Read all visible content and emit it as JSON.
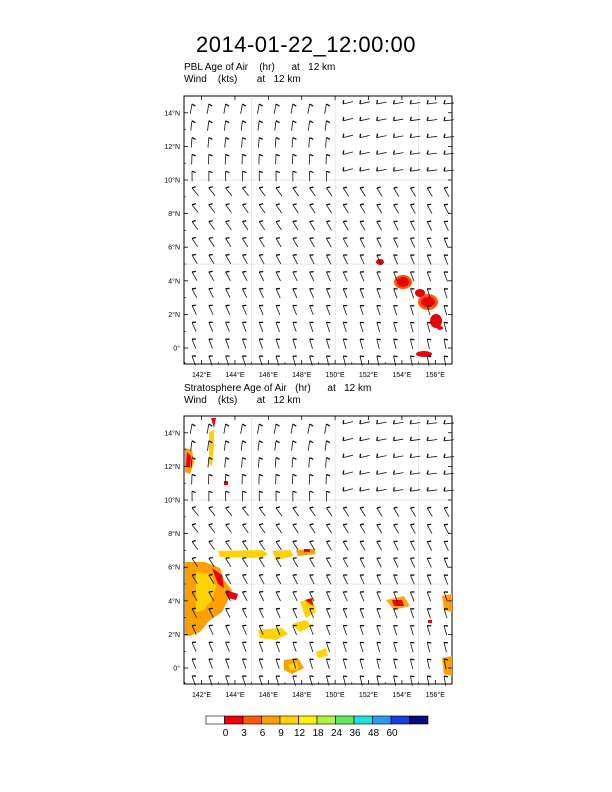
{
  "title": "2014-01-22_12:00:00",
  "panels": [
    {
      "title_line1": "PBL Age of Air    (hr)      at   12 km",
      "title_line2": "Wind    (kts)       at   12 km"
    },
    {
      "title_line1": "Stratosphere Age of Air   (hr)      at   12 km",
      "title_line2": "Wind    (kts)       at   12 km"
    }
  ],
  "lat_labels": [
    "14°N",
    "12°N",
    "10°N",
    "8°N",
    "6°N",
    "4°N",
    "2°N",
    "0°"
  ],
  "lon_labels": [
    "142°E",
    "144°E",
    "146°E",
    "148°E",
    "150°E",
    "152°E",
    "154°E",
    "156°E"
  ],
  "colorbar": {
    "labels": [
      "0",
      "3",
      "6",
      "9",
      "12",
      "18",
      "24",
      "36",
      "48",
      "60"
    ],
    "colors": [
      "#ffffff",
      "#e8000b",
      "#ff5a00",
      "#ff9f00",
      "#ffd200",
      "#fff200",
      "#b5f03c",
      "#5fe85a",
      "#1fe0d8",
      "#2e9bf0",
      "#1a3fd8",
      "#0a0a7a"
    ]
  }
}
